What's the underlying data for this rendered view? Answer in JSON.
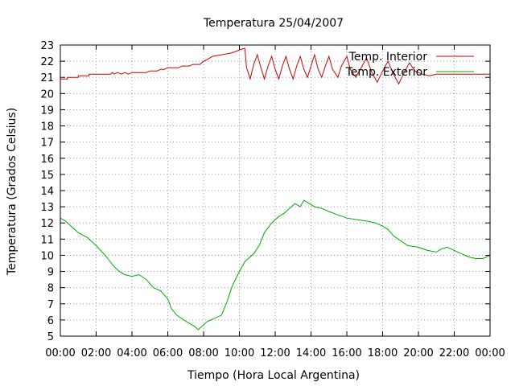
{
  "chart_data": {
    "type": "line",
    "title": "Temperatura 25/04/2007",
    "xlabel": "Tiempo (Hora Local Argentina)",
    "ylabel": "Temperatura (Grados Celsius)",
    "xlim": [
      0,
      24
    ],
    "ylim": [
      5,
      23
    ],
    "x_ticks": [
      {
        "value": 0,
        "label": "00:00"
      },
      {
        "value": 2,
        "label": "02:00"
      },
      {
        "value": 4,
        "label": "04:00"
      },
      {
        "value": 6,
        "label": "06:00"
      },
      {
        "value": 8,
        "label": "08:00"
      },
      {
        "value": 10,
        "label": "10:00"
      },
      {
        "value": 12,
        "label": "12:00"
      },
      {
        "value": 14,
        "label": "14:00"
      },
      {
        "value": 16,
        "label": "16:00"
      },
      {
        "value": 18,
        "label": "18:00"
      },
      {
        "value": 20,
        "label": "20:00"
      },
      {
        "value": 22,
        "label": "22:00"
      },
      {
        "value": 24,
        "label": "00:00"
      }
    ],
    "y_ticks": [
      5,
      6,
      7,
      8,
      9,
      10,
      11,
      12,
      13,
      14,
      15,
      16,
      17,
      18,
      19,
      20,
      21,
      22,
      23
    ],
    "grid": true,
    "legend": "top-right",
    "series": [
      {
        "name": "Temp. Interior",
        "color": "#cc0000",
        "points": [
          [
            0,
            20.9
          ],
          [
            0.4,
            20.9
          ],
          [
            0.4,
            21.0
          ],
          [
            1.0,
            21.0
          ],
          [
            1.0,
            21.1
          ],
          [
            1.6,
            21.1
          ],
          [
            1.6,
            21.2
          ],
          [
            2.8,
            21.2
          ],
          [
            2.9,
            21.3
          ],
          [
            3.0,
            21.2
          ],
          [
            3.2,
            21.3
          ],
          [
            3.4,
            21.2
          ],
          [
            3.6,
            21.3
          ],
          [
            3.8,
            21.2
          ],
          [
            4.0,
            21.3
          ],
          [
            4.8,
            21.3
          ],
          [
            5.0,
            21.4
          ],
          [
            5.4,
            21.4
          ],
          [
            5.6,
            21.5
          ],
          [
            5.8,
            21.5
          ],
          [
            6.0,
            21.6
          ],
          [
            6.6,
            21.6
          ],
          [
            6.8,
            21.7
          ],
          [
            7.2,
            21.7
          ],
          [
            7.4,
            21.8
          ],
          [
            7.8,
            21.8
          ],
          [
            8.0,
            22.0
          ],
          [
            8.2,
            22.1
          ],
          [
            8.5,
            22.3
          ],
          [
            9.0,
            22.4
          ],
          [
            9.5,
            22.5
          ],
          [
            9.8,
            22.6
          ],
          [
            10.0,
            22.7
          ],
          [
            10.3,
            22.8
          ],
          [
            10.4,
            21.6
          ],
          [
            10.6,
            20.9
          ],
          [
            10.8,
            21.8
          ],
          [
            11.0,
            22.4
          ],
          [
            11.2,
            21.6
          ],
          [
            11.4,
            20.9
          ],
          [
            11.6,
            21.7
          ],
          [
            11.8,
            22.3
          ],
          [
            12.0,
            21.5
          ],
          [
            12.2,
            20.9
          ],
          [
            12.4,
            21.7
          ],
          [
            12.6,
            22.3
          ],
          [
            12.8,
            21.5
          ],
          [
            13.0,
            20.9
          ],
          [
            13.2,
            21.7
          ],
          [
            13.4,
            22.3
          ],
          [
            13.6,
            21.5
          ],
          [
            13.8,
            21.0
          ],
          [
            14.0,
            21.7
          ],
          [
            14.2,
            22.4
          ],
          [
            14.4,
            21.5
          ],
          [
            14.6,
            21.0
          ],
          [
            14.8,
            21.7
          ],
          [
            15.0,
            22.3
          ],
          [
            15.2,
            21.5
          ],
          [
            15.5,
            21.0
          ],
          [
            15.7,
            21.7
          ],
          [
            16.0,
            22.3
          ],
          [
            16.2,
            21.5
          ],
          [
            16.5,
            21.0
          ],
          [
            16.8,
            21.6
          ],
          [
            17.1,
            22.2
          ],
          [
            17.4,
            21.3
          ],
          [
            17.7,
            20.7
          ],
          [
            18.0,
            21.4
          ],
          [
            18.3,
            22.0
          ],
          [
            18.6,
            21.2
          ],
          [
            18.9,
            20.6
          ],
          [
            19.2,
            21.3
          ],
          [
            19.5,
            21.9
          ],
          [
            19.8,
            21.4
          ],
          [
            20.2,
            21.2
          ],
          [
            20.6,
            21.1
          ],
          [
            21.0,
            21.2
          ],
          [
            22.0,
            21.2
          ],
          [
            24.0,
            21.2
          ]
        ]
      },
      {
        "name": "Temp. Exterior",
        "color": "#00aa00",
        "points": [
          [
            0,
            12.3
          ],
          [
            0.3,
            12.1
          ],
          [
            0.6,
            11.8
          ],
          [
            1.0,
            11.4
          ],
          [
            1.5,
            11.1
          ],
          [
            2.0,
            10.6
          ],
          [
            2.5,
            10.0
          ],
          [
            3.0,
            9.3
          ],
          [
            3.3,
            9.0
          ],
          [
            3.6,
            8.8
          ],
          [
            4.0,
            8.7
          ],
          [
            4.4,
            8.8
          ],
          [
            4.8,
            8.5
          ],
          [
            5.2,
            8.0
          ],
          [
            5.6,
            7.8
          ],
          [
            6.0,
            7.3
          ],
          [
            6.2,
            6.7
          ],
          [
            6.5,
            6.3
          ],
          [
            6.9,
            6.0
          ],
          [
            7.2,
            5.8
          ],
          [
            7.5,
            5.6
          ],
          [
            7.7,
            5.4
          ],
          [
            7.9,
            5.6
          ],
          [
            8.2,
            5.9
          ],
          [
            8.6,
            6.1
          ],
          [
            9.0,
            6.3
          ],
          [
            9.3,
            7.1
          ],
          [
            9.6,
            8.1
          ],
          [
            10.0,
            9.0
          ],
          [
            10.3,
            9.6
          ],
          [
            10.8,
            10.1
          ],
          [
            11.1,
            10.6
          ],
          [
            11.4,
            11.4
          ],
          [
            11.8,
            12.0
          ],
          [
            12.2,
            12.4
          ],
          [
            12.5,
            12.6
          ],
          [
            12.8,
            12.9
          ],
          [
            13.1,
            13.2
          ],
          [
            13.4,
            13.0
          ],
          [
            13.6,
            13.4
          ],
          [
            13.9,
            13.2
          ],
          [
            14.2,
            13.0
          ],
          [
            14.6,
            12.9
          ],
          [
            15.0,
            12.7
          ],
          [
            15.5,
            12.5
          ],
          [
            16.0,
            12.3
          ],
          [
            16.6,
            12.2
          ],
          [
            17.2,
            12.1
          ],
          [
            17.6,
            12.0
          ],
          [
            18.0,
            11.8
          ],
          [
            18.3,
            11.6
          ],
          [
            18.6,
            11.2
          ],
          [
            19.0,
            10.9
          ],
          [
            19.4,
            10.6
          ],
          [
            20.0,
            10.5
          ],
          [
            20.5,
            10.3
          ],
          [
            21.0,
            10.2
          ],
          [
            21.3,
            10.4
          ],
          [
            21.6,
            10.5
          ],
          [
            22.0,
            10.3
          ],
          [
            22.4,
            10.1
          ],
          [
            22.8,
            9.9
          ],
          [
            23.2,
            9.8
          ],
          [
            23.6,
            9.8
          ],
          [
            23.8,
            9.9
          ],
          [
            24.0,
            10.0
          ]
        ]
      }
    ]
  }
}
